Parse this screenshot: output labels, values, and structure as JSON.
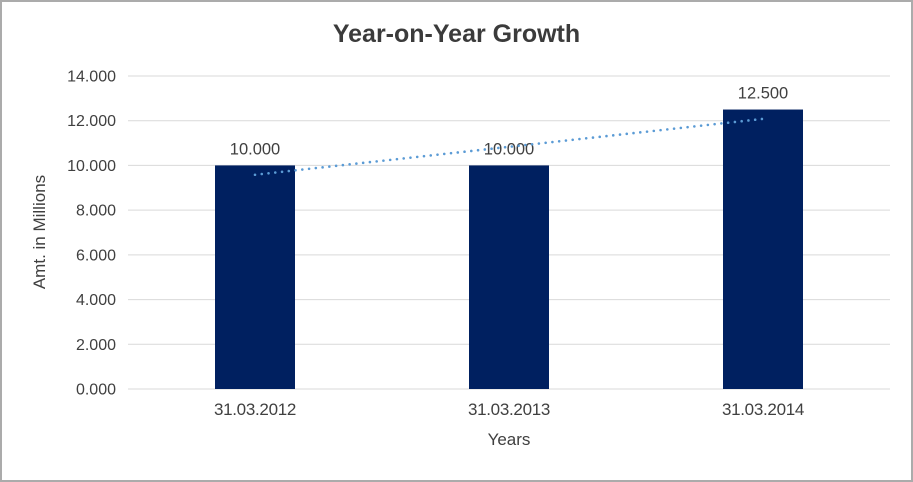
{
  "chart_data": {
    "type": "bar",
    "title": "Year-on-Year Growth",
    "xlabel": "Years",
    "ylabel": "Amt. in Millions",
    "categories": [
      "31.03.2012",
      "31.03.2013",
      "31.03.2014"
    ],
    "values": [
      10.0,
      10.0,
      12.5
    ],
    "bar_labels": [
      "10.000",
      "10.000",
      "12.500"
    ],
    "ylim": [
      0,
      14
    ],
    "ytick_step": 2,
    "ytick_labels": [
      "0.000",
      "2.000",
      "4.000",
      "6.000",
      "8.000",
      "10.000",
      "12.000",
      "14.000"
    ],
    "grid": true,
    "legend_position": "none",
    "trendline": {
      "style": "dotted",
      "start_value": 9.583,
      "end_value": 12.083
    },
    "colors": {
      "bar": "#002060",
      "trendline": "#5B9BD5",
      "gridline": "#D9D9D9",
      "tick_text": "#404040",
      "title_text": "#3B3B3B",
      "frame_border": "#ABABAB",
      "background": "#FFFFFF"
    }
  }
}
